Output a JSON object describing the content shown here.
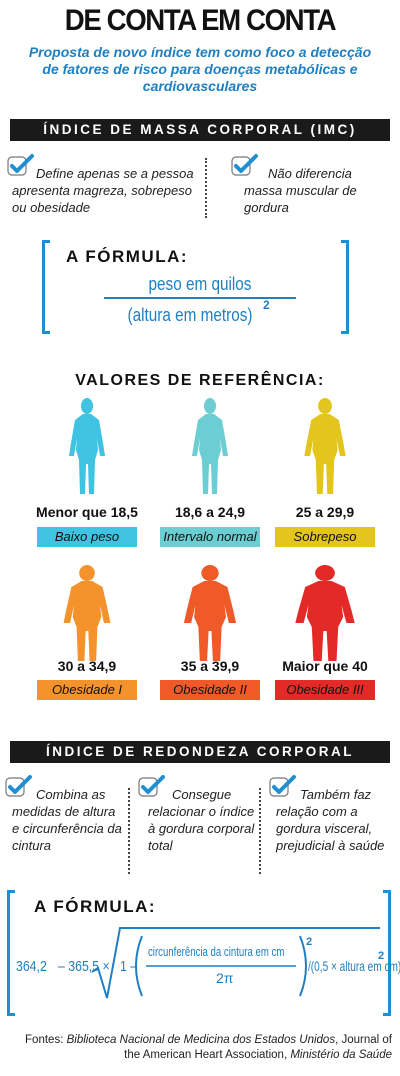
{
  "title": "DE CONTA EM CONTA",
  "subtitle": "Proposta de novo índice tem como foco a detecção de fatores de risco para doenças metabólicas e cardiovasculares",
  "imc": {
    "header": "ÍNDICE DE MASSA CORPORAL (IMC)",
    "point1": "Define apenas se a pessoa apresenta magreza, sobrepeso ou obesidade",
    "point2": "Não diferencia massa muscular de gordura",
    "formula_label": "A FÓRMULA:",
    "numerator": "peso em quilos",
    "denominator": "(altura em metros)",
    "exponent": "2"
  },
  "reference": {
    "title": "VALORES DE REFERÊNCIA:",
    "items": [
      {
        "range": "Menor que 18,5",
        "label": "Baixo peso",
        "color": "#3ec3e2"
      },
      {
        "range": "18,6 a 24,9",
        "label": "Intervalo normal",
        "color": "#6ccdd3"
      },
      {
        "range": "25 a 29,9",
        "label": "Sobrepeso",
        "color": "#e3c51d"
      },
      {
        "range": "30 a 34,9",
        "label": "Obesidade I",
        "color": "#f4922b"
      },
      {
        "range": "35 a 39,9",
        "label": "Obesidade II",
        "color": "#ef5a28"
      },
      {
        "range": "Maior que 40",
        "label": "Obesidade III",
        "color": "#e42a27"
      }
    ]
  },
  "irc": {
    "header": "ÍNDICE DE REDONDEZA CORPORAL",
    "point1": "Combina as medidas de altura e circunferência da cintura",
    "point2": "Consegue relacionar o índice à gordura corporal total",
    "point3": "Também faz relação com a gordura visceral, prejudicial à saúde",
    "formula_label": "A FÓRMULA:",
    "const1": "364,2",
    "const2": "– 365,5 ×",
    "one_minus": "1 –",
    "num": "circunferência da cintura em cm",
    "den": "2π",
    "exp": "2",
    "div_part": "/(0,5 × altura em cm)",
    "exp2": "2"
  },
  "sources": {
    "prefix": "Fontes: ",
    "s1": "Biblioteca Nacional de Medicina dos Estados Unidos",
    "s2": ", Journal of the American Heart Association, ",
    "s3": "Ministério da Saúde"
  }
}
